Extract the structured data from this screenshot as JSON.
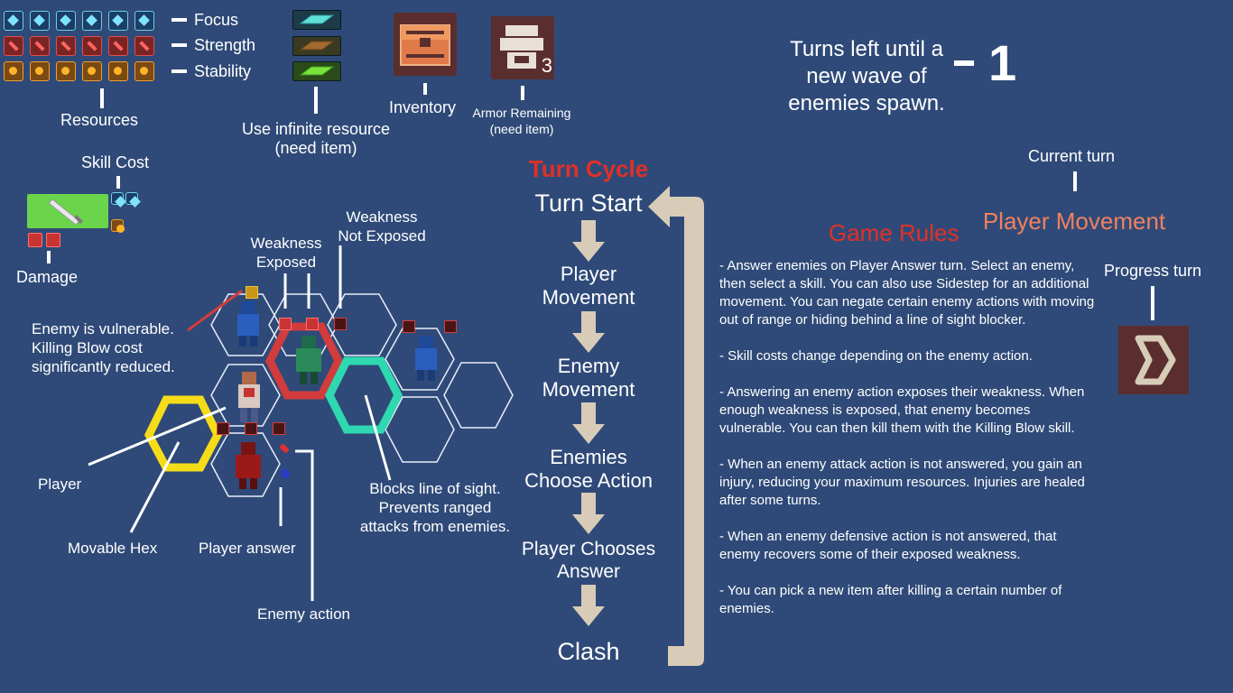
{
  "resources": {
    "focus_label": "Focus",
    "strength_label": "Strength",
    "stability_label": "Stability",
    "caption": "Resources",
    "per_row": 6
  },
  "infinite_resource": {
    "caption_line1": "Use infinite resource",
    "caption_line2": "(need item)"
  },
  "inventory": {
    "caption": "Inventory"
  },
  "armor": {
    "count": "3",
    "caption_line1": "Armor Remaining",
    "caption_line2": "(need item)"
  },
  "wave": {
    "line1": "Turns left until a",
    "line2": "new wave of",
    "line3": "enemies spawn.",
    "count": "1"
  },
  "skill": {
    "cost_label": "Skill Cost",
    "damage_label": "Damage"
  },
  "board": {
    "weakness_exposed_1": "Weakness",
    "weakness_exposed_2": "Exposed",
    "weakness_not_exposed_1": "Weakness",
    "weakness_not_exposed_2": "Not Exposed",
    "vulnerable_1": "Enemy is vulnerable.",
    "vulnerable_2": "Killing Blow cost",
    "vulnerable_3": "significantly reduced.",
    "player": "Player",
    "movable_hex": "Movable Hex",
    "player_answer": "Player answer",
    "enemy_action": "Enemy action",
    "blocks_1": "Blocks line of sight.",
    "blocks_2": "Prevents ranged",
    "blocks_3": "attacks from enemies."
  },
  "turn_cycle": {
    "title": "Turn Cycle",
    "steps": [
      {
        "line1": "Turn Start",
        "line2": ""
      },
      {
        "line1": "Player",
        "line2": "Movement"
      },
      {
        "line1": "Enemy",
        "line2": "Movement"
      },
      {
        "line1": "Enemies",
        "line2": "Choose Action"
      },
      {
        "line1": "Player Chooses",
        "line2": "Answer"
      },
      {
        "line1": "Clash",
        "line2": ""
      }
    ]
  },
  "current_turn": {
    "label": "Current turn",
    "value": "Player Movement"
  },
  "progress": {
    "label": "Progress turn"
  },
  "rules": {
    "title": "Game Rules",
    "items": [
      "- Answer enemies on Player Answer turn. Select an enemy, then select a skill. You can also use Sidestep for an additional movement. You can negate certain enemy actions with moving out of range or hiding behind a line of sight blocker.",
      "- Skill costs change depending on the enemy action.",
      "- Answering an enemy action exposes their weakness. When enough weakness is exposed, that enemy becomes vulnerable. You can then kill them with the Killing Blow skill.",
      "- When an enemy attack action is not answered, you gain an injury, reducing your maximum resources. Injuries are healed after some turns.",
      "- When an enemy defensive action is not answered, that enemy recovers some of their exposed weakness.",
      "- You can pick a new item after killing a certain number of enemies."
    ]
  },
  "colors": {
    "background": "#2f4a78",
    "accent_red": "#e03028",
    "accent_orange": "#f08060",
    "hex_yellow": "#f5dc18",
    "hex_red": "#d23c3c",
    "hex_teal": "#2ed8b0",
    "skill_green": "#6ad44a"
  }
}
